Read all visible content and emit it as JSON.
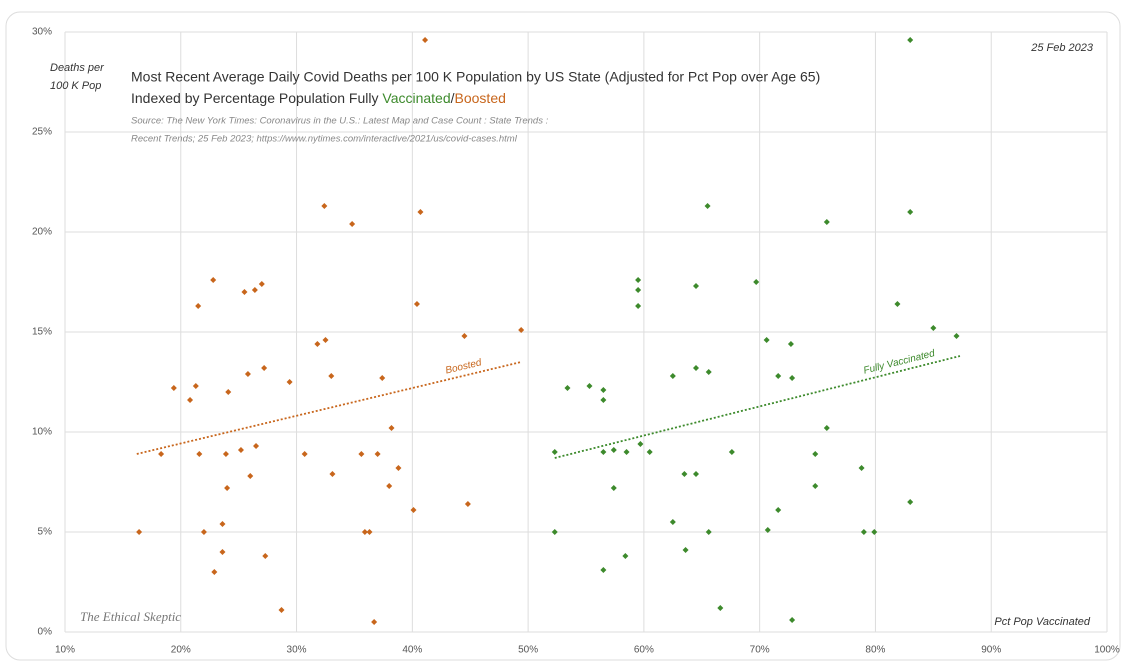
{
  "chart_data": {
    "type": "scatter",
    "title": "Most Recent Average Daily Covid Deaths per 100 K Population by US State (Adjusted for Pct Pop over Age 65)",
    "subtitle": [
      "Indexed by Percentage Population Fully ",
      "Vaccinated",
      "/",
      "Boosted"
    ],
    "source": [
      "Source: The New York Times: Coronavirus in the U.S.: Latest Map and Case Count : State Trends :",
      "Recent Trends; 25 Feb 2023; https://www.nytimes.com/interactive/2021/us/covid-cases.html"
    ],
    "date": "25 Feb 2023",
    "ylabel": [
      "Deaths per",
      "100 K Pop"
    ],
    "xlabel": "Pct Pop Vaccinated",
    "watermark": "The Ethical Skeptic",
    "xlim": [
      10,
      100
    ],
    "xticks": [
      {
        "value": 10,
        "label": "10%"
      },
      {
        "value": 20,
        "label": "20%"
      },
      {
        "value": 30,
        "label": "30%"
      },
      {
        "value": 40,
        "label": "40%"
      },
      {
        "value": 50,
        "label": "50%"
      },
      {
        "value": 60,
        "label": "60%"
      },
      {
        "value": 70,
        "label": "70%"
      },
      {
        "value": 80,
        "label": "80%"
      },
      {
        "value": 90,
        "label": "90%"
      },
      {
        "value": 100,
        "label": "100%"
      }
    ],
    "ylim": [
      0,
      30
    ],
    "yticks": [
      {
        "value": 0,
        "label": "0%"
      },
      {
        "value": 5,
        "label": "5%"
      },
      {
        "value": 10,
        "label": "10%"
      },
      {
        "value": 15,
        "label": "15%"
      },
      {
        "value": 20,
        "label": "20%"
      },
      {
        "value": 25,
        "label": "25%"
      },
      {
        "value": 30,
        "label": "30%"
      }
    ],
    "grid": true,
    "series": [
      {
        "name": "Boosted",
        "color": "#c8661c",
        "x": [
          16.4,
          18.3,
          19.4,
          20.8,
          21.3,
          21.5,
          21.6,
          22.0,
          22.8,
          22.9,
          23.6,
          23.6,
          23.9,
          24.0,
          24.1,
          25.2,
          25.5,
          25.8,
          26.0,
          26.4,
          26.5,
          27.0,
          27.2,
          27.3,
          28.7,
          29.4,
          30.7,
          31.8,
          32.4,
          32.5,
          33.0,
          33.1,
          34.8,
          35.6,
          35.9,
          36.3,
          36.7,
          37.0,
          37.4,
          38.0,
          38.2,
          38.8,
          40.1,
          40.4,
          40.7,
          41.1,
          44.5,
          44.8,
          49.4
        ],
        "y": [
          5.0,
          8.9,
          12.2,
          11.6,
          12.3,
          16.3,
          8.9,
          5.0,
          17.6,
          3.0,
          5.4,
          4.0,
          8.9,
          7.2,
          12.0,
          9.1,
          17.0,
          12.9,
          7.8,
          17.1,
          9.3,
          17.4,
          13.2,
          3.8,
          1.1,
          12.5,
          8.9,
          14.4,
          21.3,
          14.6,
          12.8,
          7.9,
          20.4,
          8.9,
          5.0,
          5.0,
          0.5,
          8.9,
          12.7,
          7.3,
          10.2,
          8.2,
          6.1,
          16.4,
          21.0,
          29.6,
          14.8,
          6.4,
          15.1
        ],
        "trendline": {
          "x": [
            16.2,
            49.4
          ],
          "y": [
            8.9,
            13.5
          ]
        }
      },
      {
        "name": "Fully Vaccinated",
        "color": "#3d8a2c",
        "x": [
          52.3,
          52.3,
          53.4,
          55.3,
          56.5,
          56.5,
          56.5,
          56.5,
          57.4,
          57.4,
          58.4,
          58.5,
          59.5,
          59.5,
          59.5,
          59.7,
          60.5,
          62.5,
          62.5,
          63.5,
          63.6,
          64.5,
          64.5,
          64.5,
          65.5,
          65.6,
          65.6,
          66.6,
          67.6,
          69.7,
          70.6,
          70.7,
          71.6,
          71.6,
          72.7,
          72.8,
          72.8,
          74.8,
          74.8,
          75.8,
          75.8,
          78.8,
          79.0,
          79.9,
          81.9,
          83.0,
          83.0,
          83.0,
          85.0,
          87.0
        ],
        "y": [
          9.0,
          5.0,
          12.2,
          12.3,
          12.1,
          11.6,
          9.0,
          3.1,
          9.1,
          7.2,
          3.8,
          9.0,
          17.6,
          17.1,
          16.3,
          9.4,
          9.0,
          12.8,
          5.5,
          7.9,
          4.1,
          7.9,
          13.2,
          17.3,
          21.3,
          13.0,
          5.0,
          1.2,
          9.0,
          17.5,
          14.6,
          5.1,
          12.8,
          6.1,
          14.4,
          12.7,
          0.6,
          8.9,
          7.3,
          20.5,
          10.2,
          8.2,
          5.0,
          5.0,
          16.4,
          29.6,
          21.0,
          6.5,
          15.2,
          14.8
        ],
        "trendline": {
          "x": [
            52.3,
            87.3
          ],
          "y": [
            8.7,
            13.8
          ]
        }
      }
    ]
  }
}
